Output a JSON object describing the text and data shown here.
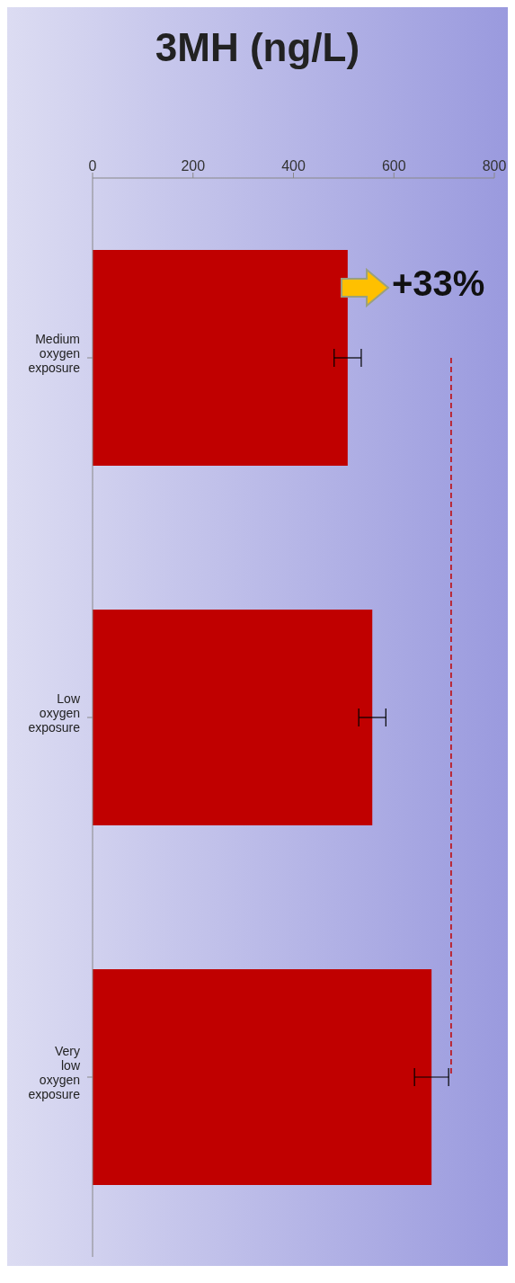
{
  "chart_data": {
    "type": "bar",
    "orientation": "horizontal",
    "title": "3MH (ng/L)",
    "categories": [
      "Medium oxygen exposure",
      "Low oxygen exposure",
      "Very low oxygen exposure"
    ],
    "values": [
      508,
      557,
      675
    ],
    "errors": [
      27,
      27,
      34
    ],
    "color": "#c00000",
    "xlim": [
      0,
      800
    ],
    "xticks": [
      0,
      200,
      400,
      600,
      800
    ],
    "ref_lines": [
      {
        "axis": "x",
        "value": 714,
        "color": "#c00000",
        "line_style": "dashed"
      }
    ],
    "annotations": [
      "+33%"
    ],
    "grid": false,
    "legend": false
  }
}
